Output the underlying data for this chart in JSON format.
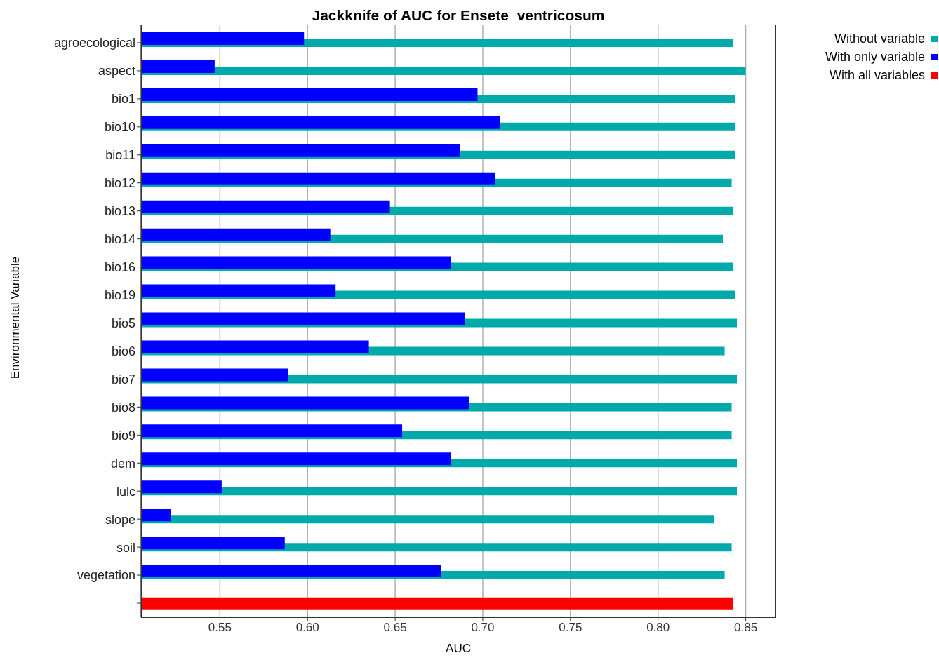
{
  "chart_data": {
    "type": "bar",
    "orientation": "horizontal",
    "title": "Jackknife of AUC for Ensete_ventricosum",
    "xlabel": "AUC",
    "ylabel": "Environmental Variable",
    "categories": [
      "agroecological",
      "aspect",
      "bio1",
      "bio10",
      "bio11",
      "bio12",
      "bio13",
      "bio14",
      "bio16",
      "bio19",
      "bio5",
      "bio6",
      "bio7",
      "bio8",
      "bio9",
      "dem",
      "lulc",
      "slope",
      "soil",
      "vegetation",
      null
    ],
    "series": [
      {
        "name": "Without variable",
        "color": "#00aaaa",
        "values": [
          0.843,
          0.85,
          0.844,
          0.844,
          0.844,
          0.842,
          0.843,
          0.837,
          0.843,
          0.844,
          0.845,
          0.838,
          0.845,
          0.842,
          0.842,
          0.845,
          0.845,
          0.832,
          0.842,
          0.838,
          null
        ]
      },
      {
        "name": "With only variable",
        "color": "#0000ff",
        "values": [
          0.598,
          0.547,
          0.697,
          0.71,
          0.687,
          0.707,
          0.647,
          0.613,
          0.682,
          0.616,
          0.69,
          0.635,
          0.589,
          0.692,
          0.654,
          0.682,
          0.551,
          0.522,
          0.587,
          0.676,
          null
        ]
      },
      {
        "name": "With all variables",
        "color": "#ff0000",
        "values": [
          null,
          null,
          null,
          null,
          null,
          null,
          null,
          null,
          null,
          null,
          null,
          null,
          null,
          null,
          null,
          null,
          null,
          null,
          null,
          null,
          0.843
        ]
      }
    ],
    "xlim": [
      0.505,
      0.867
    ],
    "xticks": [
      {
        "value": 0.55,
        "label": "0.55"
      },
      {
        "value": 0.6,
        "label": "0.60"
      },
      {
        "value": 0.65,
        "label": "0.65"
      },
      {
        "value": 0.7,
        "label": "0.70"
      },
      {
        "value": 0.75,
        "label": "0.75"
      },
      {
        "value": 0.8,
        "label": "0.80"
      },
      {
        "value": 0.85,
        "label": "0.85"
      }
    ],
    "grid": "x",
    "legend": "top right"
  }
}
